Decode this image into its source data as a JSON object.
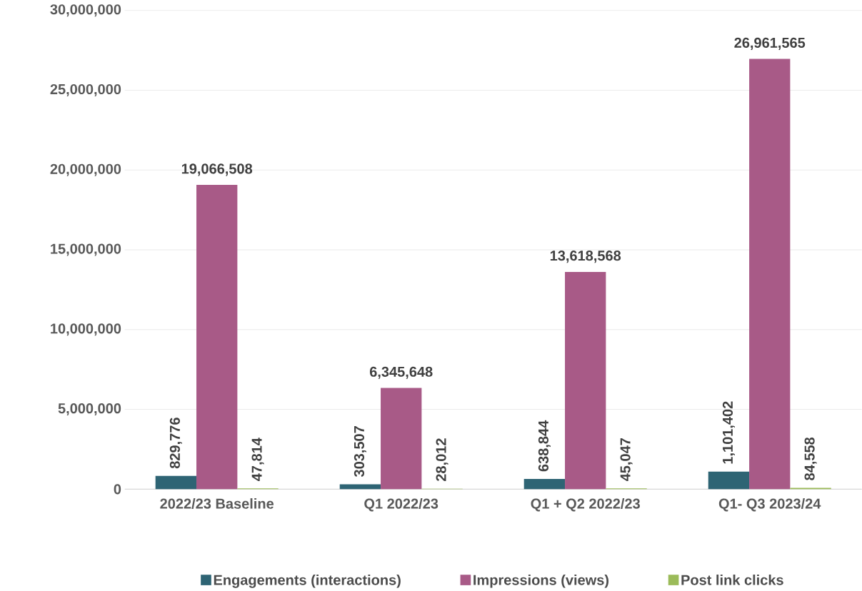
{
  "chart_data": {
    "type": "bar",
    "categories": [
      "2022/23 Baseline",
      "Q1 2022/23",
      "Q1 + Q2 2022/23",
      "Q1- Q3 2023/24"
    ],
    "series": [
      {
        "name": "Engagements (interactions)",
        "color": "#2e6474",
        "values": [
          829776,
          303507,
          638844,
          1101402
        ],
        "value_labels": [
          "829,776",
          "303,507",
          "638,844",
          "1,101,402"
        ]
      },
      {
        "name": "Impressions (views)",
        "color": "#a85a87",
        "values": [
          19066508,
          6345648,
          13618568,
          26961565
        ],
        "value_labels": [
          "19,066,508",
          "6,345,648",
          "13,618,568",
          "26,961,565"
        ]
      },
      {
        "name": "Post link clicks",
        "color": "#9bbb59",
        "values": [
          47814,
          28012,
          45047,
          84558
        ],
        "value_labels": [
          "47,814",
          "28,012",
          "45,047",
          "84,558"
        ]
      }
    ],
    "ylim": [
      0,
      30000000
    ],
    "yticks": [
      {
        "value": 0,
        "label": "0"
      },
      {
        "value": 5000000,
        "label": "5,000,000"
      },
      {
        "value": 10000000,
        "label": "10,000,000"
      },
      {
        "value": 15000000,
        "label": "15,000,000"
      },
      {
        "value": 20000000,
        "label": "20,000,000"
      },
      {
        "value": 25000000,
        "label": "25,000,000"
      },
      {
        "value": 30000000,
        "label": "30,000,000"
      }
    ],
    "grid": "y",
    "legend": "bottom"
  }
}
